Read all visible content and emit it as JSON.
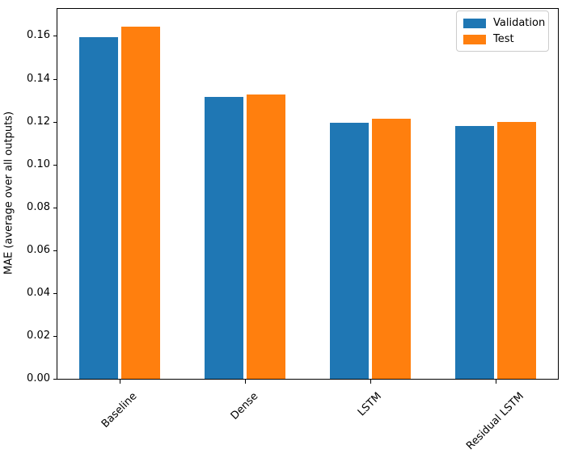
{
  "chart_data": {
    "type": "bar",
    "title": "",
    "categories": [
      "Baseline",
      "Dense",
      "LSTM",
      "Residual LSTM"
    ],
    "series": [
      {
        "name": "Validation",
        "color": "#1f77b4",
        "values": [
          0.1595,
          0.1315,
          0.1195,
          0.118
        ]
      },
      {
        "name": "Test",
        "color": "#ff7f0e",
        "values": [
          0.1645,
          0.1325,
          0.1215,
          0.12
        ]
      }
    ],
    "xlabel": "",
    "ylabel": "MAE (average over all outputs)",
    "ylim": [
      0,
      0.173
    ],
    "y_tick_labels": [
      "0.00",
      "0.02",
      "0.04",
      "0.06",
      "0.08",
      "0.10",
      "0.12",
      "0.14",
      "0.16"
    ],
    "x_tick_rotation_deg": 45,
    "grid": false,
    "legend": {
      "location": "upper right",
      "entries": [
        "Validation",
        "Test"
      ]
    },
    "colors": {
      "background": "#ffffff",
      "spine": "#000000",
      "legend_border": "#cccccc",
      "text": "#000000"
    }
  }
}
